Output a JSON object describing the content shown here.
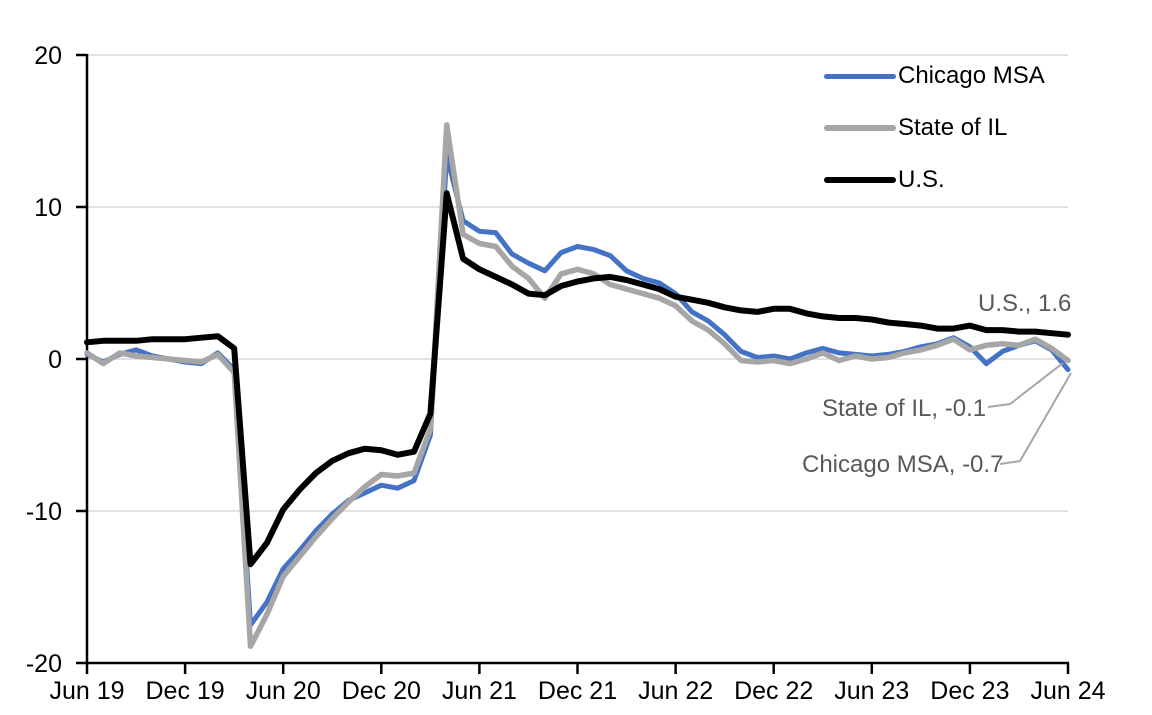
{
  "chart_data": {
    "type": "line",
    "title": "",
    "xlabel": "",
    "ylabel": "",
    "ylim": [
      -20,
      20
    ],
    "grid": "horizontal-gridlines",
    "legend_position": "top-right-inside",
    "y_ticks": [
      20,
      10,
      0,
      -10,
      -20
    ],
    "y_tick_labels": [
      "20",
      "10",
      "0",
      "-10",
      "-20"
    ],
    "x_tick_labels": [
      "Jun 19",
      "Dec 19",
      "Jun 20",
      "Dec 20",
      "Jun 21",
      "Dec 21",
      "Jun 22",
      "Dec 22",
      "Jun 23",
      "Dec 23",
      "Jun 24"
    ],
    "x_frequency": "monthly",
    "x_range": "Jun 2019 - Jun 2024",
    "series": [
      {
        "name": "Chicago MSA",
        "color": "#4472C4",
        "final_value": -0.7,
        "values": [
          0.3,
          -0.2,
          0.3,
          0.6,
          0.2,
          0.0,
          -0.2,
          -0.3,
          0.4,
          -0.7,
          -17.5,
          -16.0,
          -13.8,
          -12.6,
          -11.3,
          -10.2,
          -9.3,
          -8.8,
          -8.3,
          -8.5,
          -8.0,
          -5.0,
          13.4,
          9.1,
          8.4,
          8.3,
          6.9,
          6.3,
          5.8,
          7.0,
          7.4,
          7.2,
          6.8,
          5.8,
          5.3,
          5.0,
          4.3,
          3.1,
          2.5,
          1.6,
          0.5,
          0.1,
          0.2,
          0.0,
          0.4,
          0.7,
          0.4,
          0.3,
          0.2,
          0.3,
          0.5,
          0.8,
          1.0,
          1.4,
          0.8,
          -0.3,
          0.5,
          0.9,
          1.2,
          0.6,
          -0.7
        ]
      },
      {
        "name": "State of IL",
        "color": "#A6A6A6",
        "final_value": -0.1,
        "values": [
          0.4,
          -0.3,
          0.4,
          0.2,
          0.1,
          0.0,
          -0.1,
          -0.2,
          0.3,
          -0.9,
          -18.9,
          -16.8,
          -14.3,
          -13.0,
          -11.7,
          -10.5,
          -9.4,
          -8.4,
          -7.6,
          -7.7,
          -7.5,
          -4.6,
          15.4,
          8.2,
          7.6,
          7.4,
          6.1,
          5.3,
          4.0,
          5.6,
          5.9,
          5.6,
          4.9,
          4.6,
          4.3,
          4.0,
          3.5,
          2.5,
          1.9,
          1.0,
          -0.1,
          -0.2,
          -0.1,
          -0.3,
          0.0,
          0.4,
          -0.1,
          0.2,
          0.0,
          0.1,
          0.4,
          0.6,
          0.9,
          1.3,
          0.6,
          0.9,
          1.0,
          0.9,
          1.3,
          0.7,
          -0.1
        ]
      },
      {
        "name": "U.S.",
        "color": "#000000",
        "final_value": 1.6,
        "values": [
          1.1,
          1.2,
          1.2,
          1.2,
          1.3,
          1.3,
          1.3,
          1.4,
          1.5,
          0.7,
          -13.5,
          -12.1,
          -9.9,
          -8.6,
          -7.5,
          -6.7,
          -6.2,
          -5.9,
          -6.0,
          -6.3,
          -6.1,
          -3.6,
          10.9,
          6.6,
          5.9,
          5.4,
          4.9,
          4.3,
          4.2,
          4.8,
          5.1,
          5.3,
          5.4,
          5.2,
          4.9,
          4.6,
          4.1,
          3.9,
          3.7,
          3.4,
          3.2,
          3.1,
          3.3,
          3.3,
          3.0,
          2.8,
          2.7,
          2.7,
          2.6,
          2.4,
          2.3,
          2.2,
          2.0,
          2.0,
          2.2,
          1.9,
          1.9,
          1.8,
          1.8,
          1.7,
          1.6
        ]
      }
    ],
    "annotations": [
      {
        "text": "U.S., 1.6",
        "series": "U.S."
      },
      {
        "text": "State of IL, -0.1",
        "series": "State of IL"
      },
      {
        "text": "Chicago MSA, -0.7",
        "series": "Chicago MSA"
      }
    ]
  },
  "colors": {
    "chicago_blue": "#4472C4",
    "state_gray": "#A6A6A6",
    "us_black": "#000000",
    "gridline": "#D9D9D9",
    "axis": "#000000",
    "annotation_text": "#595959",
    "leader_line": "#A6A6A6"
  }
}
